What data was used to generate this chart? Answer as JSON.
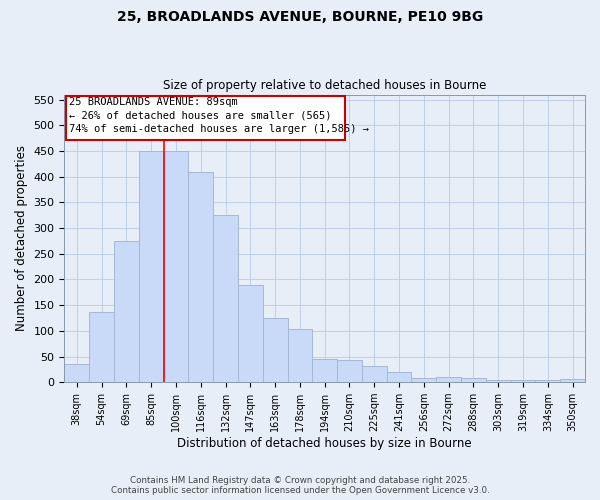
{
  "title_line1": "25, BROADLANDS AVENUE, BOURNE, PE10 9BG",
  "title_line2": "Size of property relative to detached houses in Bourne",
  "xlabel": "Distribution of detached houses by size in Bourne",
  "ylabel": "Number of detached properties",
  "categories": [
    "38sqm",
    "54sqm",
    "69sqm",
    "85sqm",
    "100sqm",
    "116sqm",
    "132sqm",
    "147sqm",
    "163sqm",
    "178sqm",
    "194sqm",
    "210sqm",
    "225sqm",
    "241sqm",
    "256sqm",
    "272sqm",
    "288sqm",
    "303sqm",
    "319sqm",
    "334sqm",
    "350sqm"
  ],
  "values": [
    35,
    137,
    275,
    450,
    450,
    410,
    325,
    190,
    125,
    103,
    46,
    43,
    31,
    19,
    8,
    10,
    8,
    5,
    4,
    5,
    6
  ],
  "bar_color": "#c9daf8",
  "bar_edge_color": "#a4b8d4",
  "red_line_x": 3.5,
  "annotation_line1": "25 BROADLANDS AVENUE: 89sqm",
  "annotation_line2": "← 26% of detached houses are smaller (565)",
  "annotation_line3": "74% of semi-detached houses are larger (1,585) →",
  "annotation_box_color": "#ffffff",
  "annotation_box_edge": "#cc0000",
  "grid_color": "#b8cce4",
  "background_color": "#e8eef8",
  "ylim": [
    0,
    560
  ],
  "yticks": [
    0,
    50,
    100,
    150,
    200,
    250,
    300,
    350,
    400,
    450,
    500,
    550
  ],
  "footer_line1": "Contains HM Land Registry data © Crown copyright and database right 2025.",
  "footer_line2": "Contains public sector information licensed under the Open Government Licence v3.0."
}
